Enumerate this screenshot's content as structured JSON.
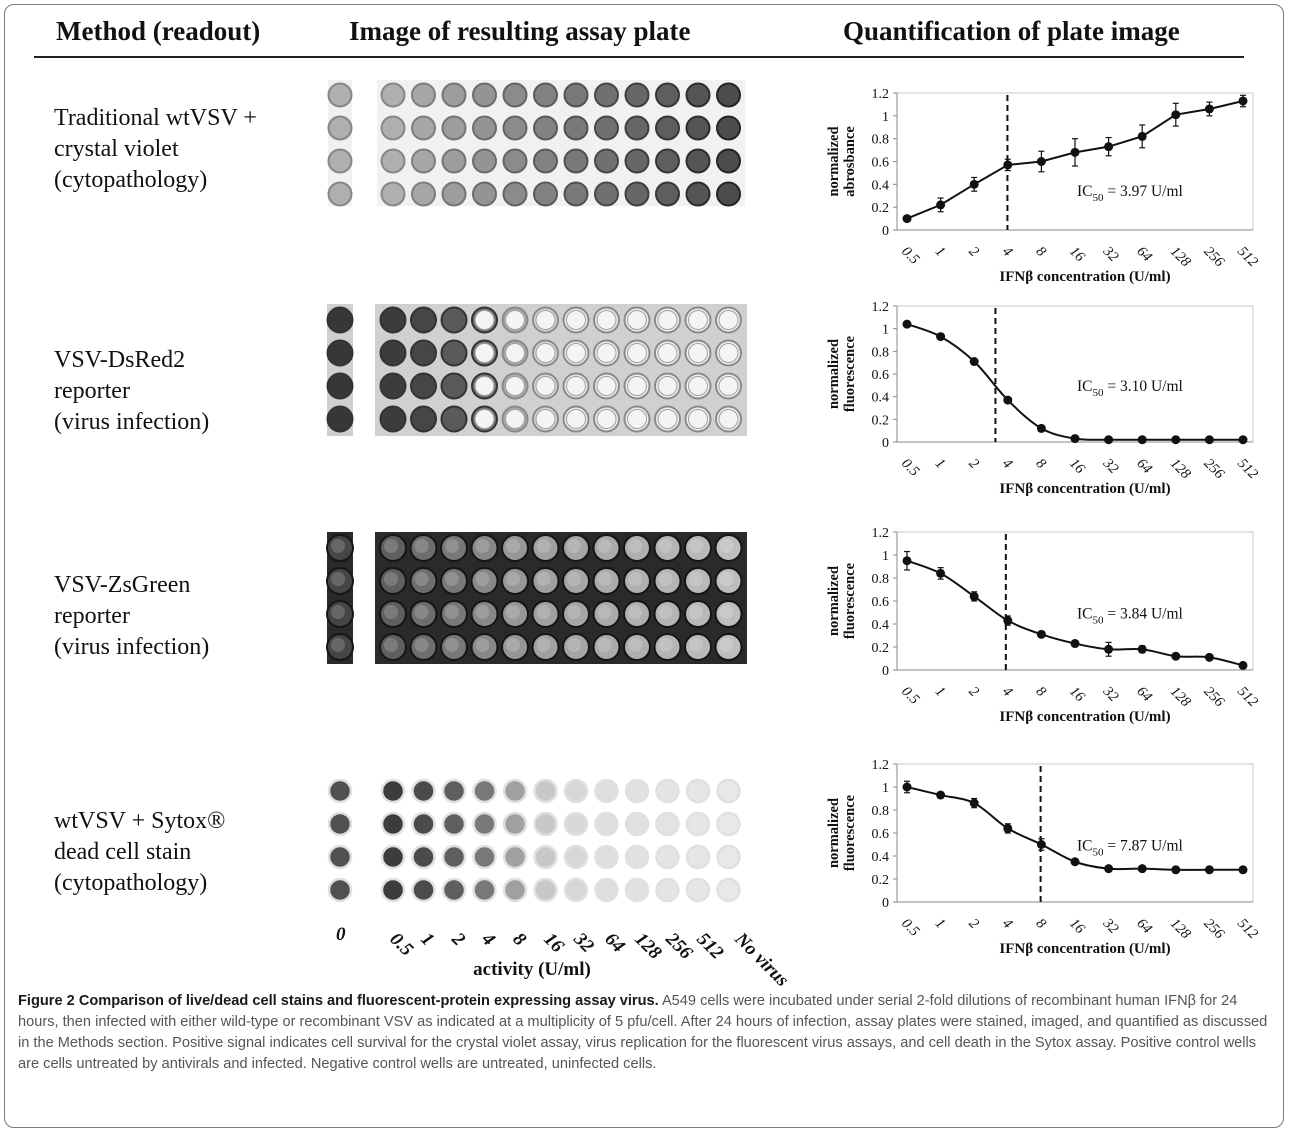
{
  "headers": {
    "method": "Method (readout)",
    "image": "Image of resulting assay plate",
    "quant": "Quantification of plate image"
  },
  "rows": [
    {
      "method_lines": [
        "Traditional wtVSV +",
        "crystal violet",
        "(cytopathology)"
      ],
      "plate_style": "crystal-violet",
      "chart_index": 0
    },
    {
      "method_lines": [
        "VSV-DsRed2",
        "reporter",
        "(virus infection)"
      ],
      "plate_style": "dsred",
      "chart_index": 1
    },
    {
      "method_lines": [
        "VSV-ZsGreen",
        "reporter",
        "(virus infection)"
      ],
      "plate_style": "zsgreen",
      "chart_index": 2
    },
    {
      "method_lines": [
        "wtVSV + Sytox®",
        "dead cell stain",
        "(cytopathology)"
      ],
      "plate_style": "sytox",
      "chart_index": 3
    }
  ],
  "plate_axis": {
    "tick_labels": [
      "0",
      "0.5",
      "1",
      "2",
      "4",
      "8",
      "16",
      "32",
      "64",
      "128",
      "256",
      "512",
      "No virus"
    ],
    "xlabel": "activity (U/ml)"
  },
  "chart_data": [
    {
      "type": "line",
      "categories": [
        "0.5",
        "1",
        "2",
        "4",
        "8",
        "16",
        "32",
        "64",
        "128",
        "256",
        "512"
      ],
      "values": [
        0.1,
        0.22,
        0.4,
        0.57,
        0.6,
        0.68,
        0.73,
        0.82,
        1.01,
        1.06,
        1.13
      ],
      "errors": [
        0.02,
        0.06,
        0.06,
        0.05,
        0.09,
        0.12,
        0.08,
        0.1,
        0.1,
        0.06,
        0.05
      ],
      "ylabel": "normalized abrosbance",
      "xlabel": "IFNβ concentration (U/ml)",
      "ylim": [
        0,
        1.2
      ],
      "yticks": [
        "0",
        "0.2",
        "0.4",
        "0.6",
        "0.8",
        "1",
        "1.2"
      ],
      "ic50_label": "IC",
      "ic50_sub": "50",
      "ic50_value": " = 3.97 U/ml",
      "ic50_x": 3.97,
      "grid": false,
      "smooth": false
    },
    {
      "type": "line",
      "categories": [
        "0.5",
        "1",
        "2",
        "4",
        "8",
        "16",
        "32",
        "64",
        "128",
        "256",
        "512"
      ],
      "values": [
        1.04,
        0.93,
        0.71,
        0.37,
        0.12,
        0.03,
        0.02,
        0.02,
        0.02,
        0.02,
        0.02
      ],
      "errors": [
        0,
        0,
        0,
        0,
        0,
        0,
        0,
        0,
        0,
        0,
        0
      ],
      "ylabel": "normalized fluorescence",
      "xlabel": "IFNβ concentration (U/ml)",
      "ylim": [
        0,
        1.2
      ],
      "yticks": [
        "0",
        "0.2",
        "0.4",
        "0.6",
        "0.8",
        "1",
        "1.2"
      ],
      "ic50_label": "IC",
      "ic50_sub": "50",
      "ic50_value": " = 3.10 U/ml",
      "ic50_x": 3.1,
      "grid": false,
      "smooth": true
    },
    {
      "type": "line",
      "categories": [
        "0.5",
        "1",
        "2",
        "4",
        "8",
        "16",
        "32",
        "64",
        "128",
        "256",
        "512"
      ],
      "values": [
        0.95,
        0.84,
        0.64,
        0.43,
        0.31,
        0.23,
        0.18,
        0.18,
        0.12,
        0.11,
        0.04
      ],
      "errors": [
        0.08,
        0.05,
        0.04,
        0.04,
        0.02,
        0.02,
        0.06,
        0.03,
        0.02,
        0.02,
        0.01
      ],
      "ylabel": "normalized fluorescence",
      "xlabel": "IFNβ concentration (U/ml)",
      "ylim": [
        0,
        1.2
      ],
      "yticks": [
        "0",
        "0.2",
        "0.4",
        "0.6",
        "0.8",
        "1",
        "1.2"
      ],
      "ic50_label": "IC",
      "ic50_sub": "50",
      "ic50_value": " = 3.84 U/ml",
      "ic50_x": 3.84,
      "grid": false,
      "smooth": true
    },
    {
      "type": "line",
      "categories": [
        "0.5",
        "1",
        "2",
        "4",
        "8",
        "16",
        "32",
        "64",
        "128",
        "256",
        "512"
      ],
      "values": [
        1.0,
        0.93,
        0.86,
        0.64,
        0.5,
        0.35,
        0.29,
        0.29,
        0.28,
        0.28,
        0.28
      ],
      "errors": [
        0.05,
        0.02,
        0.04,
        0.04,
        0.05,
        0.02,
        0.01,
        0.01,
        0.01,
        0.01,
        0.01
      ],
      "ylabel": "normalized fluorescence",
      "xlabel": "IFNβ concentration (U/ml)",
      "ylim": [
        0,
        1.2
      ],
      "yticks": [
        "0",
        "0.2",
        "0.4",
        "0.6",
        "0.8",
        "1",
        "1.2"
      ],
      "ic50_label": "IC",
      "ic50_sub": "50",
      "ic50_value": " = 7.87 U/ml",
      "ic50_x": 7.87,
      "grid": false,
      "smooth": true
    }
  ],
  "caption": {
    "title": "Figure 2 Comparison of live/dead cell stains and fluorescent-protein expressing assay virus.",
    "body": " A549 cells were incubated under serial 2-fold dilutions of recombinant human IFNβ for 24 hours, then infected with either wild-type or recombinant VSV as indicated at a multiplicity of 5 pfu/cell. After 24 hours of infection, assay plates were stained, imaged, and quantified as discussed in the Methods section. Positive signal indicates cell survival for the crystal violet assay, virus replication for the fluorescent virus assays, and cell death in the Sytox assay. Positive control wells are cells untreated by antivirals and infected. Negative control wells are untreated, uninfected cells."
  }
}
